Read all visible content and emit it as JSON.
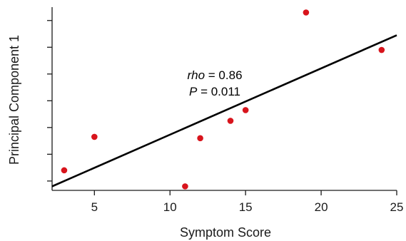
{
  "chart_data": {
    "type": "scatter",
    "xlabel": "Symptom Score",
    "ylabel": "Principal Component 1",
    "xlim": [
      2.2,
      25
    ],
    "ylim": [
      -0.35,
      6.5
    ],
    "x_ticks": [
      5,
      10,
      15,
      20,
      25
    ],
    "y_ticks": [
      0,
      1,
      2,
      3,
      4,
      5,
      6
    ],
    "y_tick_labels_shown": false,
    "grid": false,
    "legend": null,
    "series": [
      {
        "color": "#d8141c",
        "points": [
          {
            "x": 3,
            "y": 0.4
          },
          {
            "x": 5,
            "y": 1.65
          },
          {
            "x": 11,
            "y": -0.2
          },
          {
            "x": 12,
            "y": 1.6
          },
          {
            "x": 14,
            "y": 2.25
          },
          {
            "x": 15,
            "y": 2.65
          },
          {
            "x": 19,
            "y": 6.3
          },
          {
            "x": 24,
            "y": 4.9
          }
        ]
      }
    ],
    "fit_line": {
      "color": "#000000",
      "points": [
        {
          "x": 2.2,
          "y": -0.2
        },
        {
          "x": 25,
          "y": 5.45
        }
      ]
    },
    "annotation": {
      "rho_label": "rho",
      "rho_value": "= 0.86",
      "p_label": "P",
      "p_value": "= 0.011"
    }
  }
}
